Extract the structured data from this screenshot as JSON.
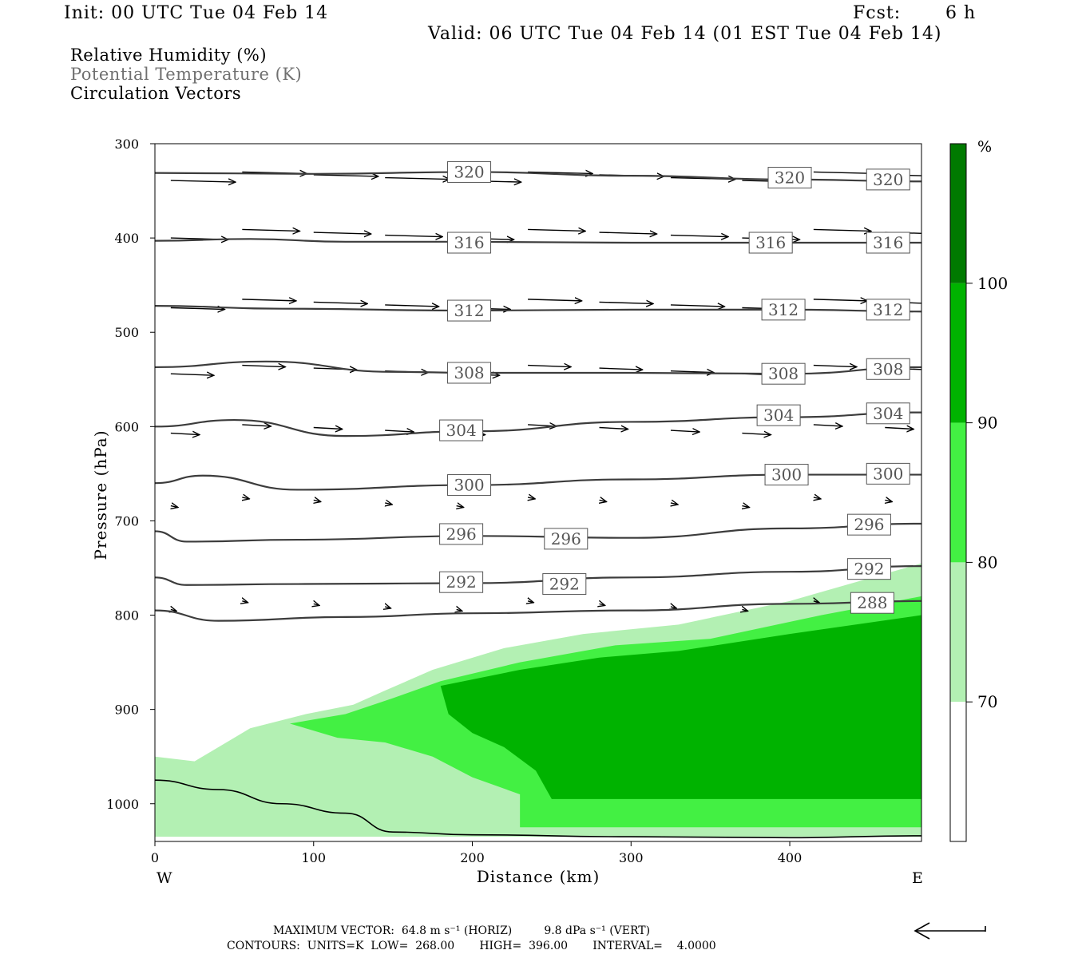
{
  "header": {
    "init": "Init: 00 UTC Tue 04 Feb 14",
    "fcst_label": "Fcst:",
    "fcst_value": "6 h",
    "valid": "Valid: 06 UTC Tue 04 Feb 14 (01 EST Tue 04 Feb 14)"
  },
  "legend": {
    "line1": "Relative Humidity (%)",
    "line2": "Potential Temperature (K)",
    "line3": "Circulation Vectors"
  },
  "footer": {
    "line1": "MAXIMUM VECTOR:  64.8 m s⁻¹ (HORIZ)         9.8 dPa s⁻¹ (VERT)",
    "line2": "CONTOURS:  UNITS=K  LOW=  268.00       HIGH=  396.00       INTERVAL=    4.0000"
  },
  "colors": {
    "rh70": "#b3f0b3",
    "rh80": "#43f043",
    "rh90": "#00b300",
    "rh100": "#007a00",
    "contour": "#3c3c3c"
  },
  "chart_data": {
    "type": "heatmap",
    "title": "",
    "xlabel": "Distance (km)",
    "ylabel": "Pressure (hPa)",
    "xlim": [
      0,
      483
    ],
    "ylim": [
      1040,
      300
    ],
    "x_ticks": [
      "0",
      "100",
      "200",
      "300",
      "400"
    ],
    "y_ticks": [
      "300",
      "400",
      "500",
      "600",
      "700",
      "800",
      "900",
      "1000"
    ],
    "x_end_labels": [
      "W",
      "E"
    ],
    "colorbar": {
      "unit": "%",
      "levels": [
        "70",
        "80",
        "90",
        "100"
      ],
      "colors": [
        "#ffffff",
        "#b3f0b3",
        "#43f043",
        "#00b300",
        "#007a00"
      ]
    },
    "rh_regions": [
      {
        "level": "70",
        "points": [
          [
            60,
            920
          ],
          [
            95,
            905
          ],
          [
            125,
            895
          ],
          [
            145,
            880
          ],
          [
            175,
            858
          ],
          [
            220,
            835
          ],
          [
            270,
            820
          ],
          [
            330,
            810
          ],
          [
            400,
            785
          ],
          [
            483,
            745
          ],
          [
            483,
            1035
          ],
          [
            0,
            1035
          ],
          [
            0,
            950
          ],
          [
            25,
            955
          ],
          [
            50,
            930
          ]
        ]
      },
      {
        "level": "80",
        "points": [
          [
            85,
            915
          ],
          [
            120,
            905
          ],
          [
            150,
            888
          ],
          [
            180,
            870
          ],
          [
            230,
            850
          ],
          [
            290,
            832
          ],
          [
            350,
            825
          ],
          [
            420,
            800
          ],
          [
            483,
            780
          ],
          [
            483,
            1025
          ],
          [
            230,
            1025
          ],
          [
            230,
            990
          ],
          [
            200,
            972
          ],
          [
            175,
            950
          ],
          [
            145,
            935
          ],
          [
            115,
            930
          ]
        ]
      },
      {
        "level": "90",
        "points": [
          [
            180,
            875
          ],
          [
            230,
            858
          ],
          [
            280,
            845
          ],
          [
            330,
            838
          ],
          [
            400,
            820
          ],
          [
            483,
            800
          ],
          [
            483,
            995
          ],
          [
            250,
            995
          ],
          [
            240,
            965
          ],
          [
            220,
            940
          ],
          [
            200,
            925
          ],
          [
            185,
            905
          ]
        ]
      }
    ],
    "theta_contours": [
      {
        "value": 320,
        "points": [
          [
            0,
            331
          ],
          [
            100,
            332
          ],
          [
            200,
            330
          ],
          [
            300,
            334
          ],
          [
            400,
            338
          ],
          [
            483,
            340
          ]
        ],
        "labels": [
          [
            198,
            330
          ],
          [
            400,
            336
          ],
          [
            462,
            338
          ]
        ]
      },
      {
        "value": 316,
        "points": [
          [
            0,
            403
          ],
          [
            60,
            401
          ],
          [
            120,
            404
          ],
          [
            200,
            404
          ],
          [
            300,
            405
          ],
          [
            400,
            405
          ],
          [
            483,
            405
          ]
        ],
        "labels": [
          [
            198,
            405
          ],
          [
            388,
            405
          ],
          [
            462,
            405
          ]
        ]
      },
      {
        "value": 312,
        "points": [
          [
            0,
            472
          ],
          [
            80,
            475
          ],
          [
            200,
            477
          ],
          [
            300,
            476
          ],
          [
            400,
            476
          ],
          [
            483,
            478
          ]
        ],
        "labels": [
          [
            198,
            477
          ],
          [
            396,
            476
          ],
          [
            462,
            476
          ]
        ]
      },
      {
        "value": 308,
        "points": [
          [
            0,
            537
          ],
          [
            70,
            531
          ],
          [
            150,
            542
          ],
          [
            200,
            543
          ],
          [
            300,
            543
          ],
          [
            400,
            544
          ],
          [
            483,
            537
          ]
        ],
        "labels": [
          [
            198,
            543
          ],
          [
            396,
            544
          ],
          [
            462,
            539
          ]
        ]
      },
      {
        "value": 304,
        "points": [
          [
            0,
            600
          ],
          [
            50,
            593
          ],
          [
            120,
            610
          ],
          [
            200,
            605
          ],
          [
            300,
            595
          ],
          [
            400,
            590
          ],
          [
            483,
            585
          ]
        ],
        "labels": [
          [
            193,
            604
          ],
          [
            393,
            588
          ],
          [
            462,
            586
          ]
        ]
      },
      {
        "value": 300,
        "points": [
          [
            0,
            660
          ],
          [
            30,
            652
          ],
          [
            90,
            667
          ],
          [
            200,
            662
          ],
          [
            300,
            656
          ],
          [
            400,
            651
          ],
          [
            483,
            651
          ]
        ],
        "labels": [
          [
            198,
            662
          ],
          [
            398,
            651
          ],
          [
            462,
            650
          ]
        ]
      },
      {
        "value": 296,
        "points": [
          [
            0,
            711
          ],
          [
            20,
            722
          ],
          [
            90,
            720
          ],
          [
            200,
            716
          ],
          [
            300,
            718
          ],
          [
            400,
            708
          ],
          [
            483,
            703
          ]
        ],
        "labels": [
          [
            193,
            714
          ],
          [
            259,
            719
          ],
          [
            450,
            704
          ]
        ]
      },
      {
        "value": 292,
        "points": [
          [
            0,
            760
          ],
          [
            20,
            768
          ],
          [
            90,
            767
          ],
          [
            200,
            766
          ],
          [
            300,
            760
          ],
          [
            400,
            754
          ],
          [
            483,
            748
          ]
        ],
        "labels": [
          [
            193,
            765
          ],
          [
            258,
            767
          ],
          [
            450,
            751
          ]
        ]
      },
      {
        "value": 288,
        "points": [
          [
            0,
            795
          ],
          [
            40,
            806
          ],
          [
            120,
            802
          ],
          [
            200,
            798
          ],
          [
            300,
            795
          ],
          [
            400,
            788
          ],
          [
            483,
            785
          ]
        ],
        "labels": [
          [
            452,
            787
          ]
        ]
      }
    ],
    "vectors_note": "Circulation vectors, max 64.8 m s-1 horizontal, 9.8 dPa s-1 vertical"
  }
}
